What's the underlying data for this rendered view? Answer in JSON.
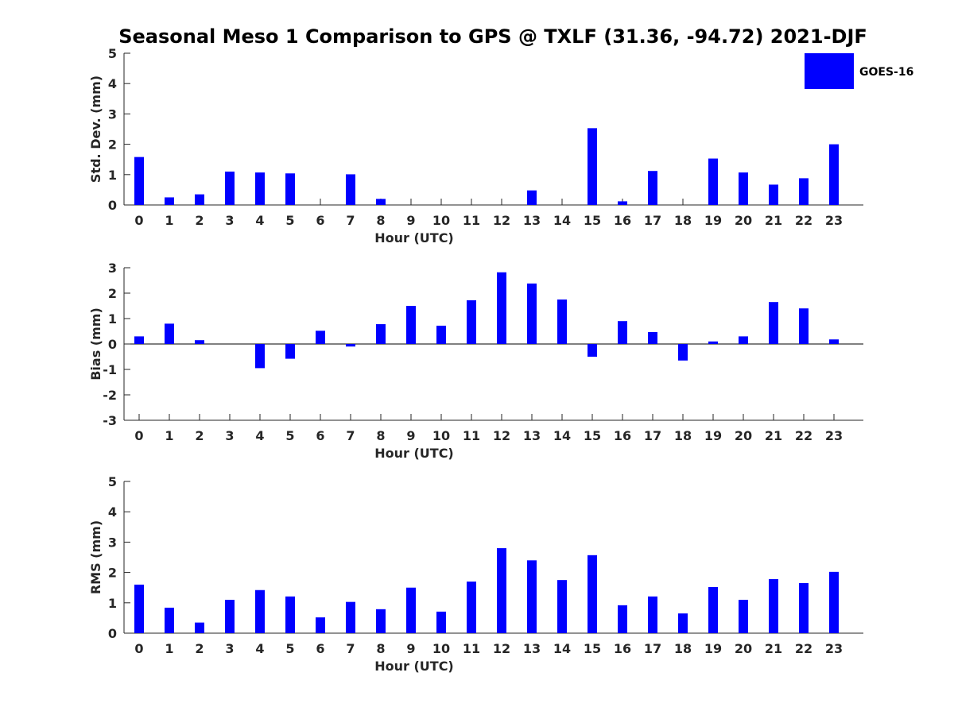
{
  "chart_data": {
    "title": "Seasonal Meso 1 Comparison to GPS @ TXLF (31.36, -94.72) 2021-DJF",
    "legend": {
      "label": "GOES-16",
      "placement": "top-right"
    },
    "bar_color": "#0000ff",
    "categories": [
      "0",
      "1",
      "2",
      "3",
      "4",
      "5",
      "6",
      "7",
      "8",
      "9",
      "10",
      "11",
      "12",
      "13",
      "14",
      "15",
      "16",
      "17",
      "18",
      "19",
      "20",
      "21",
      "22",
      "23"
    ],
    "panels": [
      {
        "type": "bar",
        "ylabel": "Std. Dev. (mm)",
        "xlabel": "Hour (UTC)",
        "ylim": [
          0,
          5
        ],
        "yticks": [
          "0",
          "1",
          "2",
          "3",
          "4",
          "5"
        ],
        "values": [
          1.58,
          0.25,
          0.35,
          1.1,
          1.07,
          1.04,
          0,
          1.01,
          0.2,
          0,
          0,
          0,
          0,
          0.48,
          0,
          2.53,
          0.12,
          1.12,
          0,
          1.53,
          1.07,
          0.67,
          0.88,
          2.0
        ]
      },
      {
        "type": "bar",
        "ylabel": "Bias (mm)",
        "xlabel": "Hour (UTC)",
        "ylim": [
          -3,
          3
        ],
        "yticks": [
          "-3",
          "-2",
          "-1",
          "0",
          "1",
          "2",
          "3"
        ],
        "values": [
          0.3,
          0.8,
          0.15,
          0,
          -0.95,
          -0.58,
          0.52,
          -0.1,
          0.78,
          1.5,
          0.72,
          1.72,
          2.82,
          2.38,
          1.75,
          -0.5,
          0.9,
          0.47,
          -0.65,
          0.1,
          0.3,
          1.65,
          1.4,
          0.18
        ]
      },
      {
        "type": "bar",
        "ylabel": "RMS (mm)",
        "xlabel": "Hour (UTC)",
        "ylim": [
          0,
          5
        ],
        "yticks": [
          "0",
          "1",
          "2",
          "3",
          "4",
          "5"
        ],
        "values": [
          1.6,
          0.84,
          0.35,
          1.1,
          1.42,
          1.21,
          0.52,
          1.03,
          0.79,
          1.5,
          0.71,
          1.7,
          2.8,
          2.4,
          1.75,
          2.57,
          0.92,
          1.21,
          0.65,
          1.52,
          1.1,
          1.78,
          1.65,
          2.02
        ]
      }
    ]
  }
}
